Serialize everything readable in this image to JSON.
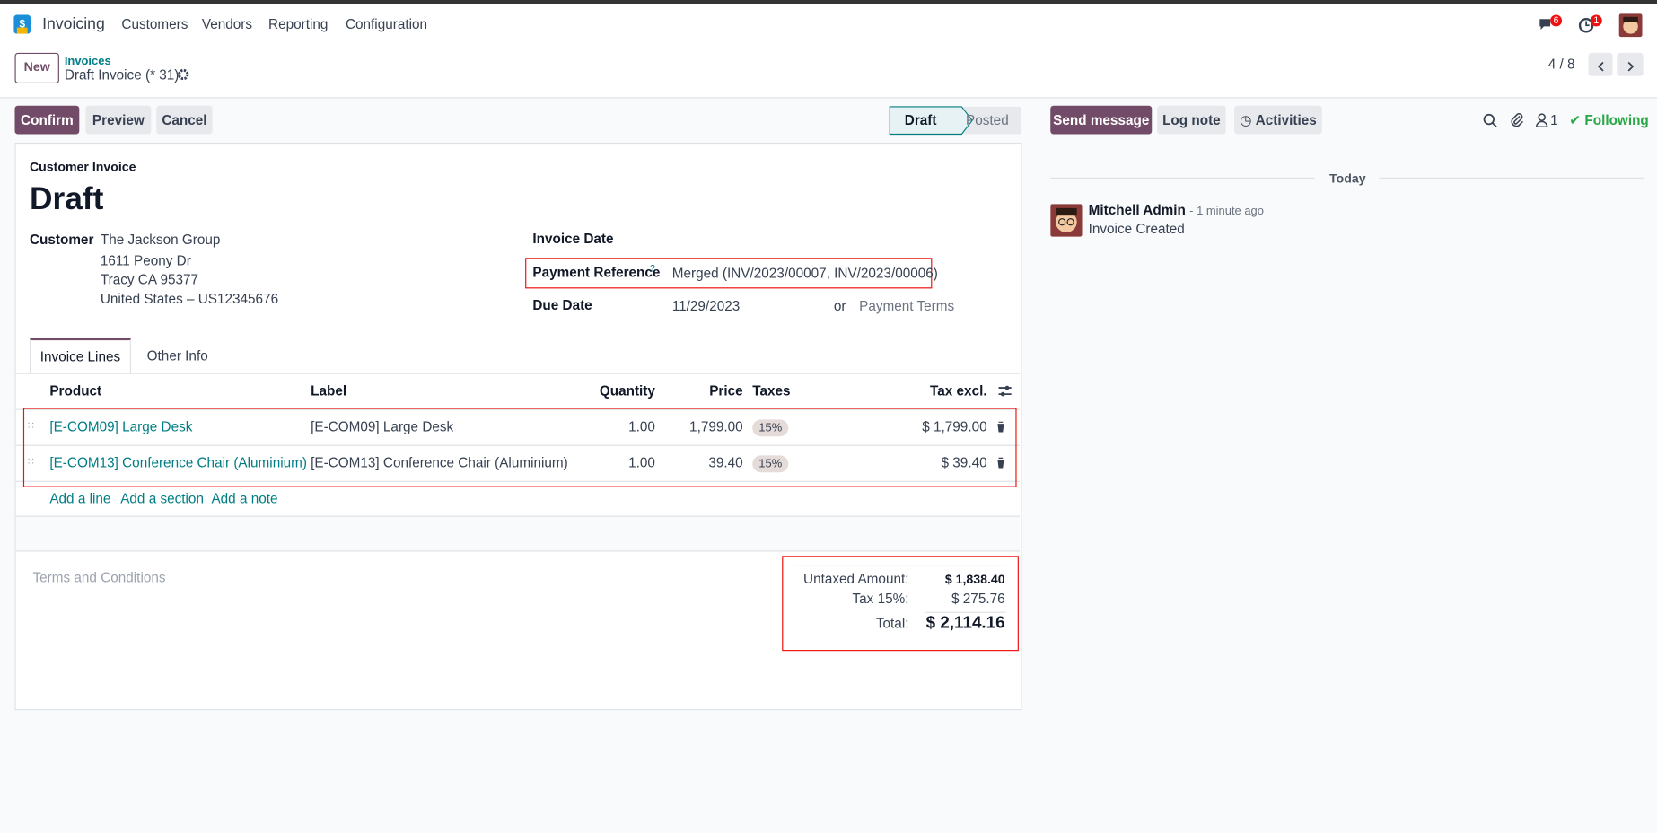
{
  "navbar": {
    "app": "Invoicing",
    "menu": [
      "Customers",
      "Vendors",
      "Reporting",
      "Configuration"
    ],
    "messages_badge": "6",
    "activities_badge": "1"
  },
  "breadcrumb": {
    "new": "New",
    "parent": "Invoices",
    "current": "Draft Invoice (* 31)",
    "pager": "4 / 8"
  },
  "actions": [
    "Confirm",
    "Preview",
    "Cancel"
  ],
  "status": [
    "Draft",
    "Posted"
  ],
  "form": {
    "type_label": "Customer Invoice",
    "state": "Draft",
    "customer_label": "Customer",
    "customer_lines": [
      "The Jackson Group",
      "1611 Peony Dr",
      "Tracy CA 95377",
      "United States – US12345676"
    ],
    "invoice_date_label": "Invoice Date",
    "payment_reference_label": "Payment Reference",
    "help_mark": "?",
    "payment_reference": "Merged (INV/2023/00007, INV/2023/00006)",
    "due_date_label": "Due Date",
    "due_date": "11/29/2023",
    "or": "or",
    "payment_terms": "Payment Terms"
  },
  "tabs": [
    "Invoice Lines",
    "Other Info"
  ],
  "table": {
    "headers": [
      "Product",
      "Label",
      "Quantity",
      "Price",
      "Taxes",
      "Tax excl."
    ],
    "rows": [
      [
        "[E-COM09] Large Desk",
        "[E-COM09] Large Desk",
        "1.00",
        "1,799.00",
        "15%",
        "$ 1,799.00"
      ],
      [
        "[E-COM13] Conference Chair (Aluminium)",
        "[E-COM13] Conference Chair (Aluminium)",
        "1.00",
        "39.40",
        "15%",
        "$ 39.40"
      ]
    ],
    "add_links": [
      "Add a line",
      "Add a section",
      "Add a note"
    ]
  },
  "terms": "Terms and Conditions",
  "totals": [
    [
      "Untaxed Amount:",
      "$ 1,838.40"
    ],
    [
      "Tax 15%:",
      "$ 275.76"
    ],
    [
      "Total:",
      "$ 2,114.16"
    ]
  ],
  "chatter": {
    "buttons": [
      "Send message",
      "Log note",
      "Activities"
    ],
    "followers": "1",
    "following": "Following",
    "date_separator": "Today",
    "messages": [
      {
        "author": "Mitchell Admin",
        "time": "- 1 minute ago",
        "body": "Invoice Created"
      }
    ]
  }
}
